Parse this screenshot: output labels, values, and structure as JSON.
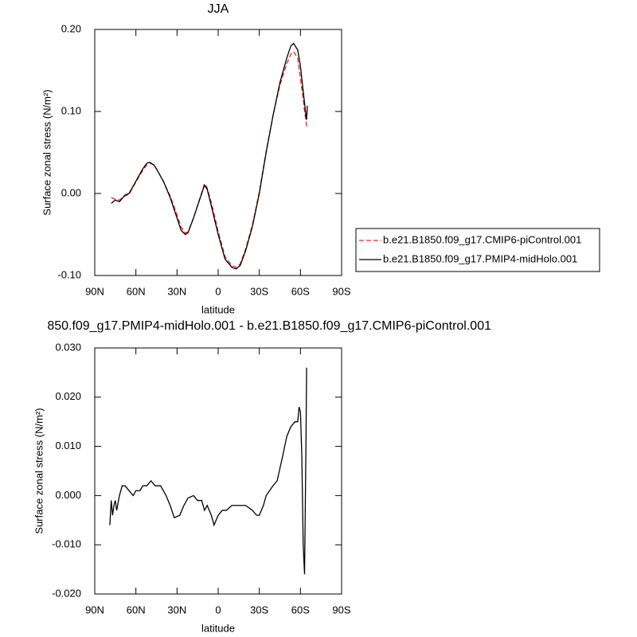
{
  "chart_data": [
    {
      "type": "line",
      "title": "JJA",
      "xlabel": "latitude",
      "ylabel": "Surface zonal stress (N/m²)",
      "x": [
        78,
        75,
        72,
        68,
        65,
        60,
        55,
        52,
        50,
        47,
        45,
        40,
        35,
        30,
        27,
        24,
        22,
        18,
        15,
        12,
        10,
        8,
        5,
        0,
        -5,
        -10,
        -13,
        -16,
        -20,
        -25,
        -30,
        -35,
        -40,
        -45,
        -50,
        -53,
        -55,
        -58,
        -60,
        -62,
        -63,
        -64,
        -64.5,
        -65
      ],
      "series": [
        {
          "name": "b.e21.B1850.f09_g17.CMIP6-piControl.001",
          "color": "#e8262a",
          "linestyle": "dashed",
          "values": [
            -0.005,
            -0.007,
            -0.008,
            -0.003,
            -0.001,
            0.014,
            0.028,
            0.035,
            0.037,
            0.035,
            0.03,
            0.015,
            -0.003,
            -0.026,
            -0.041,
            -0.048,
            -0.047,
            -0.03,
            -0.014,
            0.001,
            0.012,
            0.007,
            -0.011,
            -0.046,
            -0.077,
            -0.088,
            -0.09,
            -0.086,
            -0.068,
            -0.038,
            0.002,
            0.052,
            0.095,
            0.132,
            0.158,
            0.17,
            0.173,
            0.165,
            0.14,
            0.115,
            0.1,
            0.088,
            0.082,
            0.085
          ]
        },
        {
          "name": "b.e21.B1850.f09_g17.PMIP4-midHolo.001",
          "color": "#000000",
          "linestyle": "solid",
          "values": [
            -0.012,
            -0.008,
            -0.01,
            -0.002,
            0.0,
            0.015,
            0.03,
            0.037,
            0.038,
            0.035,
            0.03,
            0.015,
            -0.005,
            -0.03,
            -0.045,
            -0.05,
            -0.048,
            -0.03,
            -0.015,
            0.0,
            0.01,
            0.005,
            -0.015,
            -0.05,
            -0.08,
            -0.09,
            -0.092,
            -0.088,
            -0.07,
            -0.04,
            0.0,
            0.05,
            0.095,
            0.135,
            0.165,
            0.18,
            0.183,
            0.175,
            0.155,
            0.125,
            0.11,
            0.095,
            0.09,
            0.107
          ]
        }
      ],
      "legend": "right",
      "xlim": [
        90,
        -90
      ],
      "xticks": [
        {
          "value": 90,
          "label": "90N"
        },
        {
          "value": 60,
          "label": "60N"
        },
        {
          "value": 30,
          "label": "30N"
        },
        0,
        {
          "value": -30,
          "label": "30S"
        },
        {
          "value": -60,
          "label": "60S"
        },
        {
          "value": -90,
          "label": "90S"
        }
      ],
      "ylim": [
        -0.1,
        0.2
      ],
      "yticks": [
        {
          "value": -0.1,
          "label": "-0.10"
        },
        {
          "value": 0,
          "label": "0.00"
        },
        {
          "value": 0.1,
          "label": "0.10"
        },
        {
          "value": 0.2,
          "label": "0.20"
        }
      ]
    },
    {
      "type": "line",
      "title": "850.f09_g17.PMIP4-midHolo.001 - b.e21.B1850.f09_g17.CMIP6-piControl.001",
      "xlabel": "latitude",
      "ylabel": "Surface zonal stress (N/m²)",
      "x": [
        79,
        78,
        77,
        76,
        75,
        74,
        72,
        70,
        68,
        65,
        62,
        60,
        57,
        55,
        52,
        49,
        46,
        42,
        38,
        35,
        32,
        28,
        25,
        22,
        18,
        15,
        12,
        10,
        8,
        5,
        3,
        0,
        -3,
        -6,
        -10,
        -15,
        -20,
        -25,
        -28,
        -30,
        -33,
        -35,
        -40,
        -43,
        -47,
        -50,
        -53,
        -56,
        -58,
        -59,
        -60,
        -61,
        -62,
        -63,
        -64,
        -64.5
      ],
      "color": "#000000",
      "values": [
        -0.006,
        -0.001,
        -0.004,
        -0.002,
        -0.001,
        -0.003,
        0.0,
        0.002,
        0.002,
        0.001,
        0.0,
        0.001,
        0.001,
        0.002,
        0.002,
        0.003,
        0.002,
        0.002,
        0.0,
        -0.002,
        -0.0045,
        -0.004,
        -0.002,
        -0.0005,
        0.0,
        -0.001,
        -0.001,
        -0.003,
        -0.002,
        -0.004,
        -0.006,
        -0.004,
        -0.003,
        -0.003,
        -0.002,
        -0.002,
        -0.002,
        -0.003,
        -0.004,
        -0.004,
        -0.002,
        0.0,
        0.002,
        0.003,
        0.008,
        0.012,
        0.014,
        0.015,
        0.015,
        0.018,
        0.017,
        0.008,
        -0.01,
        -0.016,
        0.01,
        0.026
      ],
      "xlim": [
        90,
        -90
      ],
      "xticks": [
        {
          "value": 90,
          "label": "90N"
        },
        {
          "value": 60,
          "label": "60N"
        },
        {
          "value": 30,
          "label": "30N"
        },
        0,
        {
          "value": -30,
          "label": "30S"
        },
        {
          "value": -60,
          "label": "60S"
        },
        {
          "value": -90,
          "label": "90S"
        }
      ],
      "ylim": [
        -0.02,
        0.03
      ],
      "yticks": [
        {
          "value": -0.02,
          "label": "-0.020"
        },
        {
          "value": -0.01,
          "label": "-0.010"
        },
        {
          "value": 0,
          "label": "0.000"
        },
        {
          "value": 0.01,
          "label": "0.010"
        },
        {
          "value": 0.02,
          "label": "0.020"
        },
        {
          "value": 0.03,
          "label": "0.030"
        }
      ]
    }
  ]
}
